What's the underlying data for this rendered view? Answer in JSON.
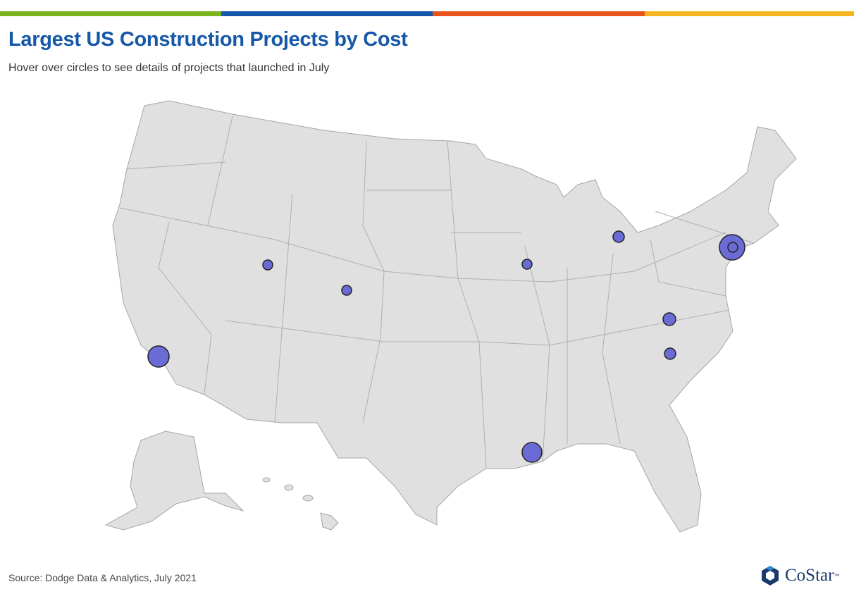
{
  "header": {
    "title": "Largest US Construction Projects by Cost",
    "subtitle": "Hover over circles to see details of projects that launched in July"
  },
  "footer": {
    "source": "Source: Dodge Data & Analytics, July 2021",
    "logo": "CoStar",
    "logo_mark": "™"
  }
}
